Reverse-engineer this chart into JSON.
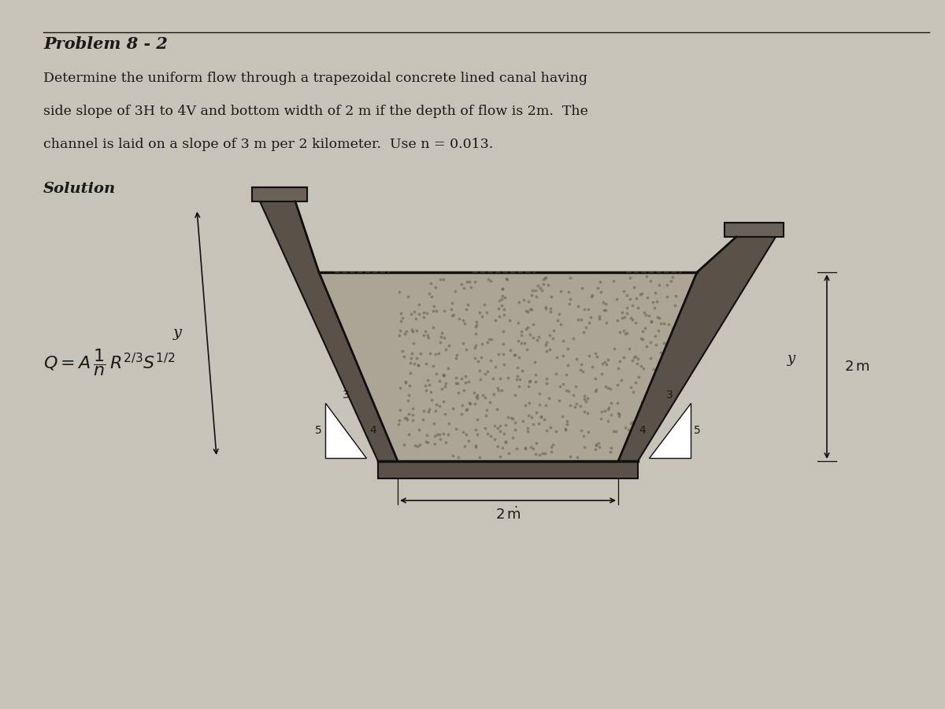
{
  "page_bg": "#c8c3b8",
  "text_color": "#1a1a1a",
  "title": "Problem 8 - 2",
  "line1": "Determine the uniform flow through a trapezoidal concrete lined canal having",
  "line2": "side slope of 3H to 4V and bottom width of 2 m if the depth of flow is 2m.  The",
  "line3": "channel is laid on a slope of 3 m per 2 kilometer.  Use n = 0.013.",
  "solution_label": "Solution",
  "wall_dark": "#5a5248",
  "wall_mid": "#7a7060",
  "water_fill": "#a8a090",
  "line_color": "#111111",
  "cap_color": "#6a6258"
}
